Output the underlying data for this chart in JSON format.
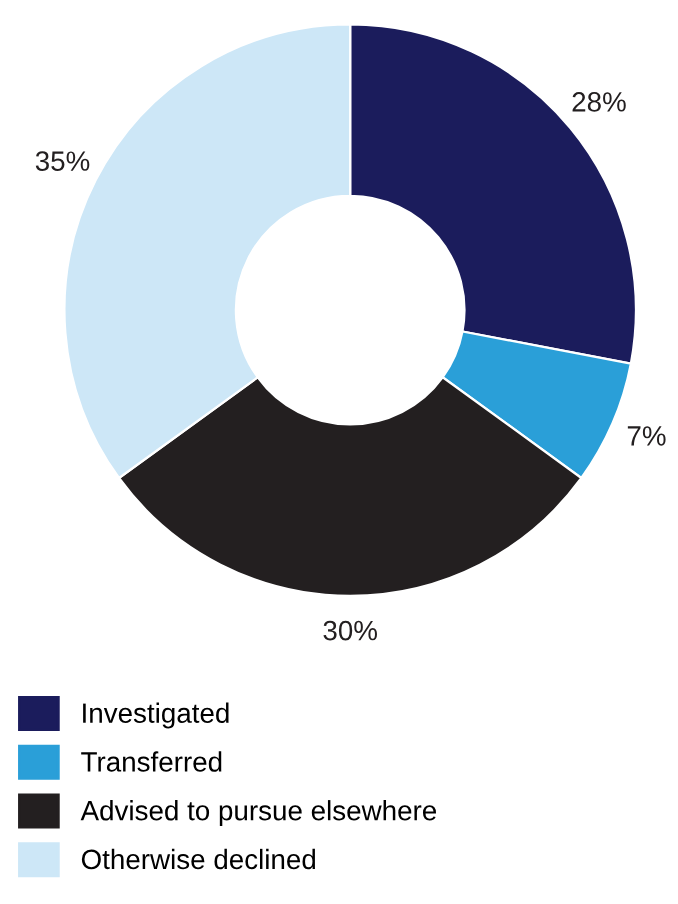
{
  "chart_data": {
    "type": "donut",
    "categories": [
      "Investigated",
      "Transferred",
      "Advised to pursue elsewhere",
      "Otherwise declined"
    ],
    "values": [
      28,
      7,
      30,
      35
    ],
    "colors": [
      "#1b1c5c",
      "#2a9fd8",
      "#231f20",
      "#cde7f7"
    ],
    "value_labels": [
      "28%",
      "7%",
      "30%",
      "35%"
    ],
    "legend": "bottom left"
  }
}
